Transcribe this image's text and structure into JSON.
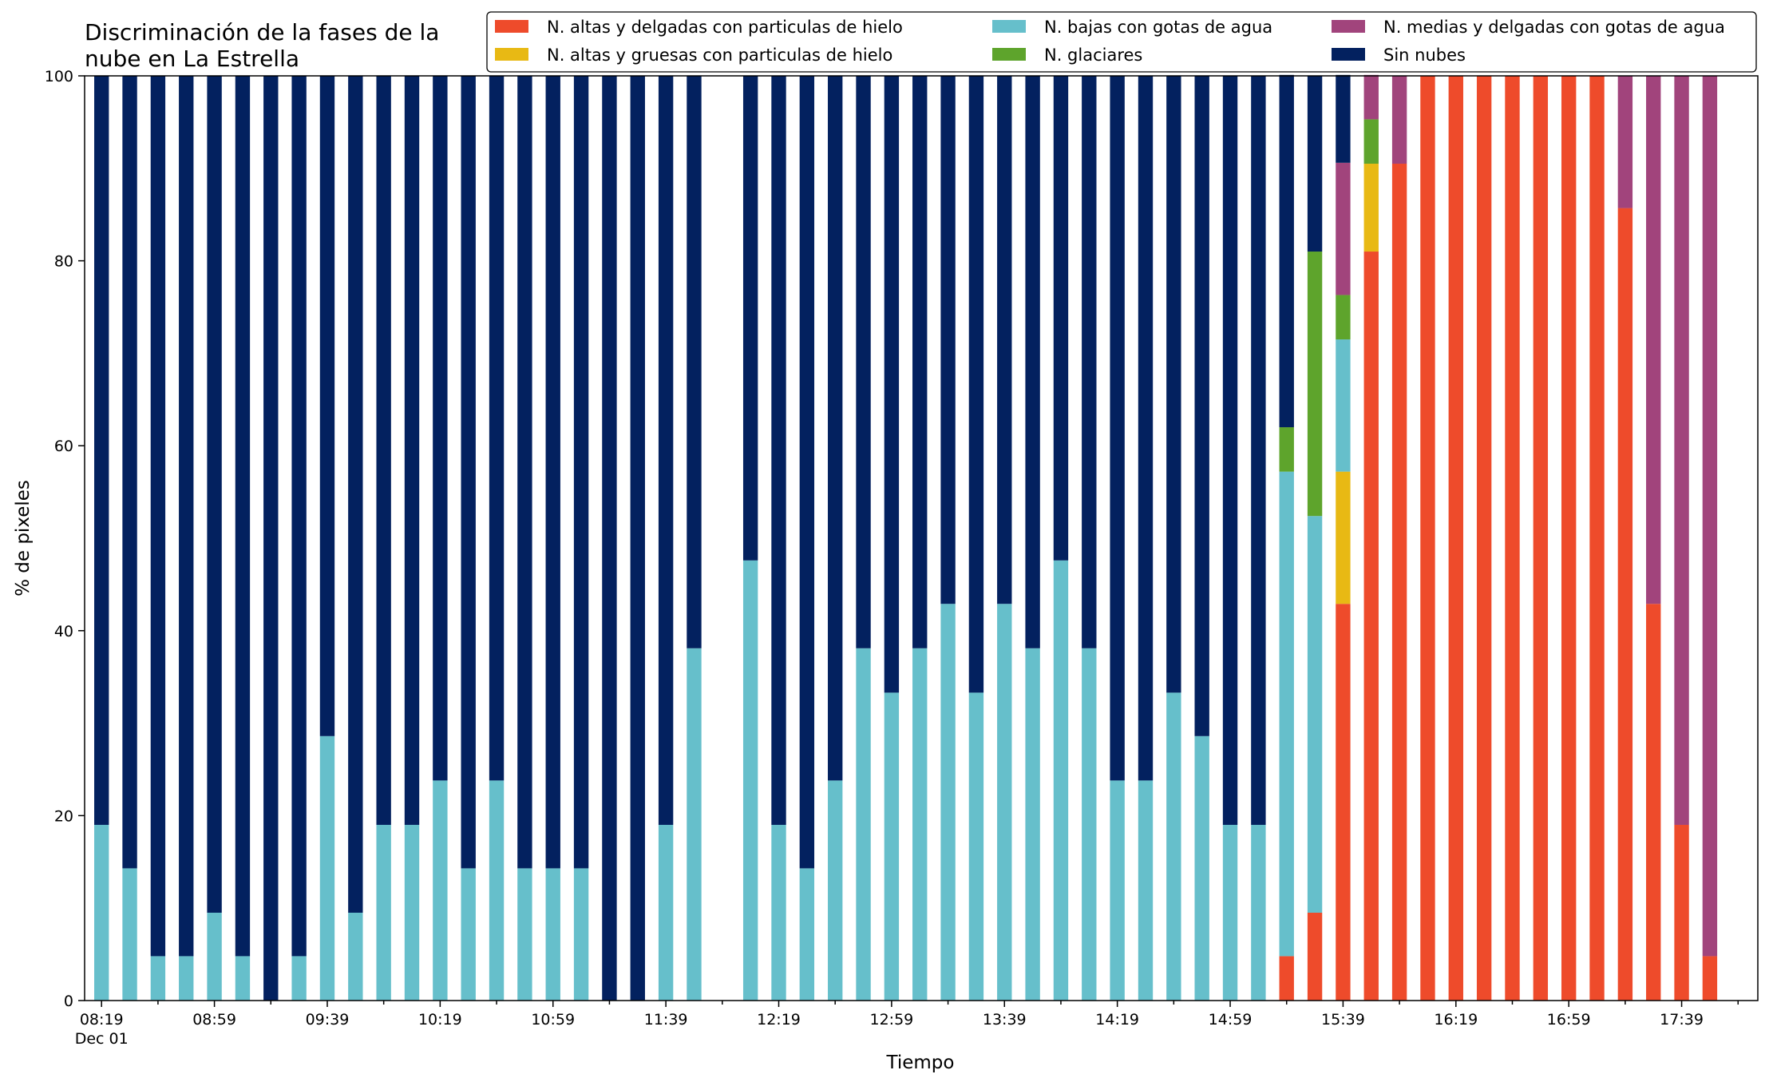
{
  "chart_data": {
    "type": "bar",
    "stacked": true,
    "title_line1": "Discriminación de la fases de la",
    "title_line2": "nube en La Estrella",
    "xlabel": "Tiempo",
    "ylabel": "% de pixeles",
    "ylim": [
      0,
      100
    ],
    "yticks": [
      "0",
      "20",
      "40",
      "60",
      "80",
      "100"
    ],
    "grid": false,
    "legend_position": "top-right",
    "x_tick_labels": [
      "08:19",
      "08:59",
      "09:39",
      "10:19",
      "10:59",
      "11:39",
      "12:19",
      "12:59",
      "13:39",
      "14:19",
      "14:59",
      "15:39",
      "16:19",
      "16:59",
      "17:39"
    ],
    "x_date_label": "Dec 01",
    "x": [
      "08:19",
      "08:29",
      "08:39",
      "08:49",
      "08:59",
      "09:09",
      "09:19",
      "09:29",
      "09:39",
      "09:49",
      "09:59",
      "10:09",
      "10:19",
      "10:29",
      "10:39",
      "10:49",
      "10:59",
      "11:09",
      "11:19",
      "11:29",
      "11:39",
      "11:49",
      "11:59",
      "12:09",
      "12:19",
      "12:29",
      "12:39",
      "12:49",
      "12:59",
      "13:09",
      "13:19",
      "13:29",
      "13:39",
      "13:49",
      "13:59",
      "14:09",
      "14:19",
      "14:29",
      "14:39",
      "14:49",
      "14:59",
      "15:09",
      "15:19",
      "15:29",
      "15:39",
      "15:49",
      "15:59",
      "16:09",
      "16:19",
      "16:29",
      "16:39",
      "16:49",
      "16:59",
      "17:09",
      "17:19",
      "17:29",
      "17:39",
      "17:49"
    ],
    "series": [
      {
        "name": "N. altas y delgadas con particulas de hielo",
        "color": "#ee4b2b",
        "values": [
          0,
          0,
          0,
          0,
          0,
          0,
          0,
          0,
          0,
          0,
          0,
          0,
          0,
          0,
          0,
          0,
          0,
          0,
          0,
          0,
          0,
          0,
          0,
          0,
          0,
          0,
          0,
          0,
          0,
          0,
          0,
          0,
          0,
          0,
          0,
          0,
          0,
          0,
          0,
          0,
          0,
          0,
          4.8,
          9.5,
          42.9,
          81.0,
          90.5,
          100,
          100,
          100,
          100,
          100,
          100,
          100,
          85.7,
          42.9,
          19.0,
          4.8
        ]
      },
      {
        "name": "N. altas y gruesas con particulas de hielo",
        "color": "#e8b914",
        "values": [
          0,
          0,
          0,
          0,
          0,
          0,
          0,
          0,
          0,
          0,
          0,
          0,
          0,
          0,
          0,
          0,
          0,
          0,
          0,
          0,
          0,
          0,
          0,
          0,
          0,
          0,
          0,
          0,
          0,
          0,
          0,
          0,
          0,
          0,
          0,
          0,
          0,
          0,
          0,
          0,
          0,
          0,
          0,
          0,
          14.3,
          9.5,
          0,
          0,
          0,
          0,
          0,
          0,
          0,
          0,
          0,
          0,
          0,
          0
        ]
      },
      {
        "name": "N. bajas con gotas de agua",
        "color": "#66bfcb",
        "values": [
          19.0,
          14.3,
          4.8,
          4.8,
          9.5,
          4.8,
          0,
          4.8,
          28.6,
          9.5,
          19.0,
          19.0,
          23.8,
          14.3,
          23.8,
          14.3,
          14.3,
          14.3,
          0,
          0,
          19.0,
          38.1,
          0,
          47.6,
          19.0,
          14.3,
          23.8,
          38.1,
          33.3,
          38.1,
          42.9,
          33.3,
          42.9,
          38.1,
          47.6,
          38.1,
          23.8,
          23.8,
          33.3,
          28.6,
          19.0,
          19.0,
          52.4,
          42.9,
          14.3,
          0,
          0,
          0,
          0,
          0,
          0,
          0,
          0,
          0,
          0,
          0,
          0,
          0
        ]
      },
      {
        "name": "N. glaciares",
        "color": "#5ea42c",
        "values": [
          0,
          0,
          0,
          0,
          0,
          0,
          0,
          0,
          0,
          0,
          0,
          0,
          0,
          0,
          0,
          0,
          0,
          0,
          0,
          0,
          0,
          0,
          0,
          0,
          0,
          0,
          0,
          0,
          0,
          0,
          0,
          0,
          0,
          0,
          0,
          0,
          0,
          0,
          0,
          0,
          0,
          0,
          4.8,
          28.6,
          4.8,
          4.8,
          0,
          0,
          0,
          0,
          0,
          0,
          0,
          0,
          0,
          0,
          0,
          0
        ]
      },
      {
        "name": "N. medias y delgadas con gotas de agua",
        "color": "#a1447c",
        "values": [
          0,
          0,
          0,
          0,
          0,
          0,
          0,
          0,
          0,
          0,
          0,
          0,
          0,
          0,
          0,
          0,
          0,
          0,
          0,
          0,
          0,
          0,
          0,
          0,
          0,
          0,
          0,
          0,
          0,
          0,
          0,
          0,
          0,
          0,
          0,
          0,
          0,
          0,
          0,
          0,
          0,
          0,
          0,
          0,
          14.3,
          4.8,
          9.5,
          0,
          0,
          0,
          0,
          0,
          0,
          0,
          14.3,
          57.1,
          81.0,
          95.2
        ]
      },
      {
        "name": "Sin nubes",
        "color": "#03215f",
        "values": [
          81.0,
          85.7,
          95.2,
          95.2,
          90.5,
          95.2,
          100,
          95.2,
          71.4,
          90.5,
          81.0,
          81.0,
          76.2,
          85.7,
          76.2,
          85.7,
          85.7,
          85.7,
          100,
          100,
          81.0,
          61.9,
          0,
          52.4,
          81.0,
          85.7,
          76.2,
          61.9,
          66.7,
          61.9,
          57.1,
          66.7,
          57.1,
          61.9,
          52.4,
          61.9,
          76.2,
          76.2,
          66.7,
          71.4,
          81.0,
          81.0,
          38.1,
          19.0,
          9.5,
          0,
          0,
          0,
          0,
          0,
          0,
          0,
          0,
          0,
          0,
          0,
          0,
          0
        ]
      }
    ]
  }
}
